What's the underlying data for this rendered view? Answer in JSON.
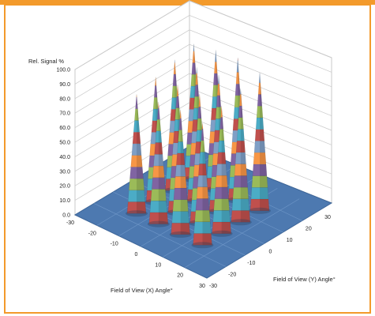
{
  "colors": {
    "frame": "#f39a2b",
    "floor": "#4d79b0",
    "floor_light": "#6f97c8",
    "grid": "#c9c9c9",
    "bands": [
      "#c0504d",
      "#4bacc6",
      "#9bbb59",
      "#8064a2",
      "#f79646",
      "#7f9fc6"
    ]
  },
  "chart_data": {
    "type": "surface",
    "ylabel": "Rel. Signal %",
    "xlabel": "Field of View (X) Angle°",
    "zlabel": "Field of View (Y) Angle°",
    "z_ticks": [
      "0.0",
      "10.0",
      "20.0",
      "30.0",
      "40.0",
      "50.0",
      "60.0",
      "70.0",
      "80.0",
      "90.0",
      "100.0"
    ],
    "x_ticks": [
      "-30",
      "-20",
      "-10",
      "0",
      "10",
      "20",
      "30"
    ],
    "y_ticks": [
      "-30",
      "-20",
      "-10",
      "0",
      "10",
      "20",
      "30"
    ],
    "zlim": [
      0,
      100
    ],
    "xlim": [
      -30,
      30
    ],
    "ylim": [
      -30,
      30
    ],
    "peaks": [
      {
        "x": -15,
        "y": -15,
        "value": 82
      },
      {
        "x": -15,
        "y": -5,
        "value": 86
      },
      {
        "x": -15,
        "y": 5,
        "value": 90
      },
      {
        "x": -15,
        "y": 15,
        "value": 93
      },
      {
        "x": -5,
        "y": -15,
        "value": 84
      },
      {
        "x": -5,
        "y": -5,
        "value": 88
      },
      {
        "x": -5,
        "y": 5,
        "value": 92
      },
      {
        "x": -5,
        "y": 15,
        "value": 96
      },
      {
        "x": 5,
        "y": -15,
        "value": 86
      },
      {
        "x": 5,
        "y": -5,
        "value": 89
      },
      {
        "x": 5,
        "y": 5,
        "value": 94
      },
      {
        "x": 5,
        "y": 15,
        "value": 98
      },
      {
        "x": 15,
        "y": -15,
        "value": 84
      },
      {
        "x": 15,
        "y": -5,
        "value": 88
      },
      {
        "x": 15,
        "y": 5,
        "value": 92
      },
      {
        "x": 15,
        "y": 15,
        "value": 95
      }
    ]
  }
}
